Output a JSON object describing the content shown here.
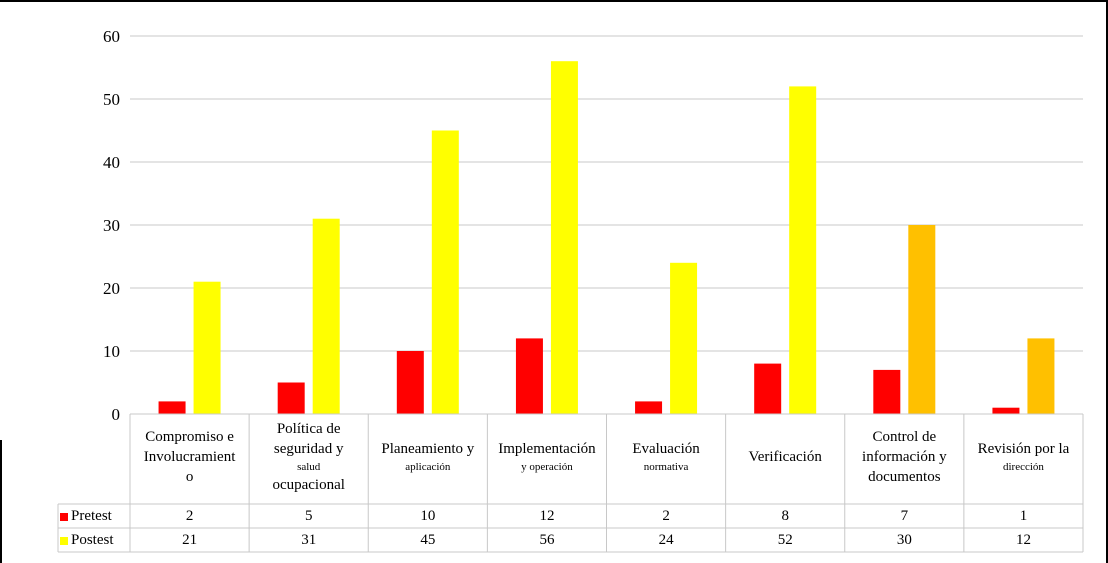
{
  "chart_data": {
    "type": "bar",
    "ylim": [
      0,
      60
    ],
    "yticks": [
      "0",
      "10",
      "20",
      "30",
      "40",
      "50",
      "60"
    ],
    "grid": true,
    "legend_position": "data-table",
    "categories": [
      {
        "parts": [
          [
            "Compromiso e",
            "main"
          ],
          [
            "Involucramient",
            "main"
          ],
          [
            "o",
            "main"
          ]
        ]
      },
      {
        "parts": [
          [
            "Política de",
            "main"
          ],
          [
            "seguridad y",
            "main"
          ],
          [
            "salud",
            "small"
          ],
          [
            "ocupacional",
            "main"
          ]
        ]
      },
      {
        "parts": [
          [
            "Planeamiento y",
            "main"
          ],
          [
            "aplicación",
            "small"
          ]
        ]
      },
      {
        "parts": [
          [
            "Implementación",
            "main"
          ],
          [
            "y operación",
            "small"
          ]
        ]
      },
      {
        "parts": [
          [
            "Evaluación",
            "main"
          ],
          [
            "normativa",
            "small"
          ]
        ]
      },
      {
        "parts": [
          [
            "Verificación",
            "main"
          ]
        ]
      },
      {
        "parts": [
          [
            "Control de",
            "main"
          ],
          [
            "información y",
            "main"
          ],
          [
            "documentos",
            "main"
          ]
        ]
      },
      {
        "parts": [
          [
            "Revisión por la",
            "main"
          ],
          [
            "dirección",
            "small"
          ]
        ]
      }
    ],
    "series": [
      {
        "name": "Pretest",
        "color": "#ff0000",
        "values": [
          2,
          5,
          10,
          12,
          2,
          8,
          7,
          1
        ],
        "value_labels": [
          "2",
          "5",
          "10",
          "12",
          "2",
          "8",
          "7",
          "1"
        ]
      },
      {
        "name": "Postest",
        "color": "#ffff00",
        "values": [
          21,
          31,
          45,
          56,
          24,
          52,
          30,
          12
        ],
        "value_labels": [
          "21",
          "31",
          "45",
          "56",
          "24",
          "52",
          "30",
          "12"
        ],
        "point_colors": [
          "#ffff00",
          "#ffff00",
          "#ffff00",
          "#ffff00",
          "#ffff00",
          "#ffff00",
          "#ffc000",
          "#ffc000"
        ]
      }
    ]
  }
}
